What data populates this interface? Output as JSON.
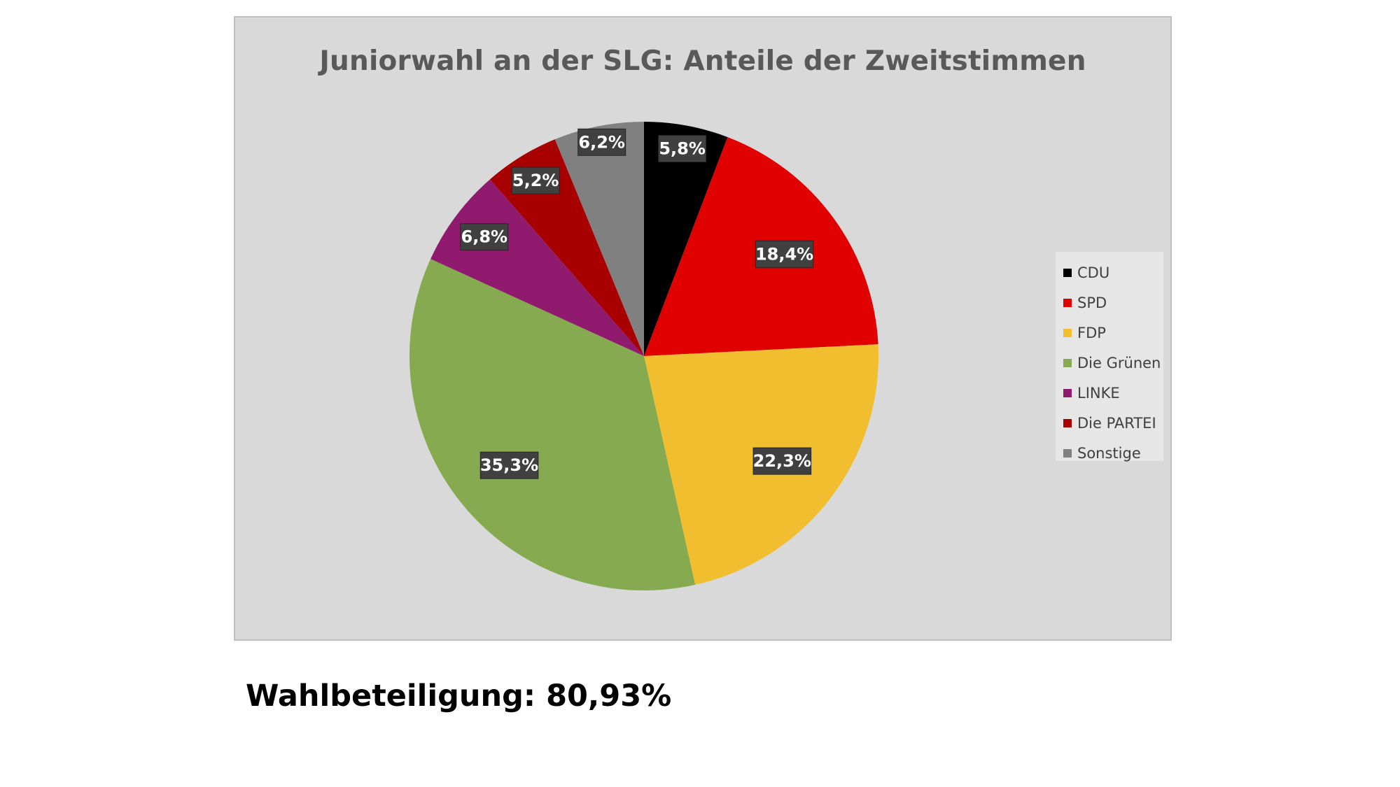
{
  "chart_data": {
    "type": "pie",
    "title": "Juniorwahl an der SLG: Anteile der Zweitstimmen",
    "slices": [
      {
        "name": "CDU",
        "value": 5.8,
        "label": "5,8%",
        "color": "#000000"
      },
      {
        "name": "SPD",
        "value": 18.4,
        "label": "18,4%",
        "color": "#e00000"
      },
      {
        "name": "FDP",
        "value": 22.3,
        "label": "22,3%",
        "color": "#f0be2e"
      },
      {
        "name": "Die Grünen",
        "value": 35.3,
        "label": "35,3%",
        "color": "#85aa4f"
      },
      {
        "name": "LINKE",
        "value": 6.8,
        "label": "6,8%",
        "color": "#8f1a6e"
      },
      {
        "name": "Die PARTEI",
        "value": 5.2,
        "label": "5,2%",
        "color": "#a80000"
      },
      {
        "name": "Sonstige",
        "value": 6.2,
        "label": "6,2%",
        "color": "#808080"
      }
    ],
    "legend_position": "right",
    "start_angle": "12 o'clock",
    "direction": "clockwise"
  },
  "footer": {
    "turnout_text": "Wahlbeteiligung: 80,93%"
  }
}
